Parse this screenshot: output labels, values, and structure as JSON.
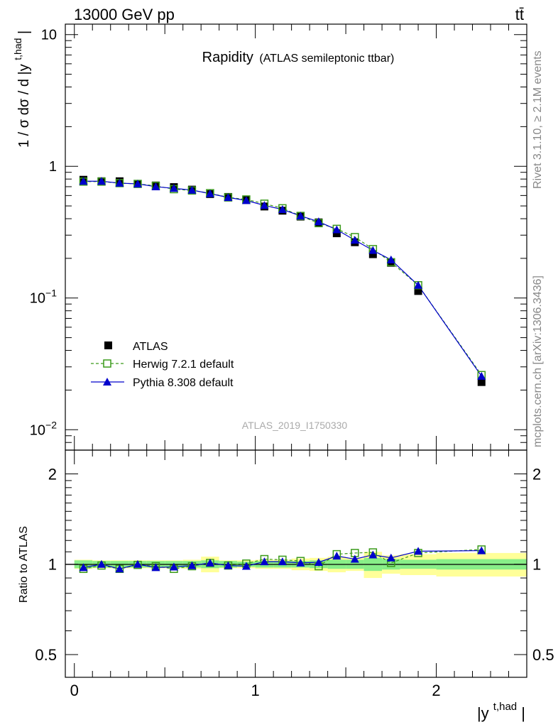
{
  "header": {
    "energy_label": "13000 GeV pp",
    "process_label": "tt̄",
    "side_label_rivet": "Rivet 3.1.10, ≥ 2.1M events",
    "side_label_mcplots": "mcplots.cern.ch [arXiv:1306.3436]"
  },
  "chart_data": [
    {
      "type": "scatter",
      "panel": "main",
      "title": "Rapidity",
      "subtitle": "(ATLAS semileptonic ttbar)",
      "analysis_label": "ATLAS_2019_I1750330",
      "ylabel_text": "1 / σ dσ / d |y",
      "ylabel_sup": "t,had",
      "ylabel_end": "|",
      "yscale": "log",
      "ylim": [
        0.007,
        12
      ],
      "xlim": [
        -0.05,
        2.5
      ],
      "ytick_labels": {
        "main": [
          "10",
          "1",
          "10",
          "10"
        ],
        "exp": [
          "",
          "",
          "−1",
          "−2"
        ]
      },
      "legend_position": "bottom-left",
      "x": [
        0.05,
        0.15,
        0.25,
        0.35,
        0.45,
        0.55,
        0.65,
        0.75,
        0.85,
        0.95,
        1.05,
        1.15,
        1.25,
        1.35,
        1.45,
        1.55,
        1.65,
        1.75,
        1.9,
        2.25
      ],
      "series": [
        {
          "name": "ATLAS",
          "style": "data",
          "color": "#000000",
          "values": [
            0.79,
            0.77,
            0.77,
            0.735,
            0.715,
            0.695,
            0.665,
            0.615,
            0.585,
            0.555,
            0.495,
            0.46,
            0.415,
            0.375,
            0.31,
            0.265,
            0.215,
            0.185,
            0.113,
            0.023
          ]
        },
        {
          "name": "Herwig 7.2.1 default",
          "style": "dashed",
          "color": "#3a9a1a",
          "values": [
            0.765,
            0.765,
            0.745,
            0.735,
            0.71,
            0.67,
            0.655,
            0.625,
            0.58,
            0.56,
            0.52,
            0.48,
            0.42,
            0.37,
            0.335,
            0.29,
            0.235,
            0.187,
            0.125,
            0.026
          ]
        },
        {
          "name": "Pythia 8.308 default",
          "style": "solid",
          "color": "#0000cc",
          "values": [
            0.77,
            0.77,
            0.745,
            0.735,
            0.7,
            0.68,
            0.66,
            0.62,
            0.58,
            0.55,
            0.505,
            0.47,
            0.42,
            0.38,
            0.33,
            0.275,
            0.23,
            0.195,
            0.125,
            0.0255
          ]
        }
      ]
    },
    {
      "type": "scatter",
      "panel": "ratio",
      "ylabel": "Ratio to ATLAS",
      "xlabel_text": "|y",
      "xlabel_sup": "t,had",
      "xlabel_end": "|",
      "yscale": "log",
      "ylim": [
        0.42,
        2.4
      ],
      "xlim": [
        -0.05,
        2.5
      ],
      "ytick_labels": [
        "2",
        "1",
        "0.5"
      ],
      "xtick_labels": [
        "0",
        "1",
        "2"
      ],
      "x": [
        0.05,
        0.15,
        0.25,
        0.35,
        0.45,
        0.55,
        0.65,
        0.75,
        0.85,
        0.95,
        1.05,
        1.15,
        1.25,
        1.35,
        1.45,
        1.55,
        1.65,
        1.75,
        1.9,
        2.25
      ],
      "bin_edges": [
        0.0,
        0.1,
        0.2,
        0.3,
        0.4,
        0.5,
        0.6,
        0.7,
        0.8,
        0.9,
        1.0,
        1.1,
        1.2,
        1.3,
        1.4,
        1.5,
        1.6,
        1.7,
        1.8,
        2.0,
        2.5
      ],
      "band_inner": [
        0.03,
        0.025,
        0.025,
        0.025,
        0.025,
        0.025,
        0.025,
        0.03,
        0.025,
        0.02,
        0.025,
        0.025,
        0.025,
        0.03,
        0.035,
        0.035,
        0.05,
        0.04,
        0.035,
        0.04
      ],
      "band_outer": [
        0.035,
        0.03,
        0.03,
        0.03,
        0.03,
        0.03,
        0.035,
        0.06,
        0.03,
        0.03,
        0.035,
        0.035,
        0.045,
        0.05,
        0.06,
        0.05,
        0.1,
        0.07,
        0.08,
        0.09
      ],
      "series": [
        {
          "name": "Herwig 7.2.1 default",
          "style": "dashed",
          "color": "#3a9a1a",
          "values": [
            0.965,
            0.99,
            0.965,
            0.995,
            0.985,
            0.965,
            0.985,
            1.01,
            0.99,
            1.005,
            1.04,
            1.035,
            1.025,
            0.985,
            1.08,
            1.09,
            1.095,
            1.01,
            1.09,
            1.12
          ]
        },
        {
          "name": "Pythia 8.308 default",
          "style": "solid",
          "color": "#0000cc",
          "values": [
            0.975,
            1.0,
            0.965,
            1.0,
            0.975,
            0.98,
            0.99,
            1.01,
            0.99,
            0.985,
            1.02,
            1.02,
            1.01,
            1.015,
            1.065,
            1.04,
            1.075,
            1.05,
            1.105,
            1.11
          ]
        }
      ]
    }
  ]
}
